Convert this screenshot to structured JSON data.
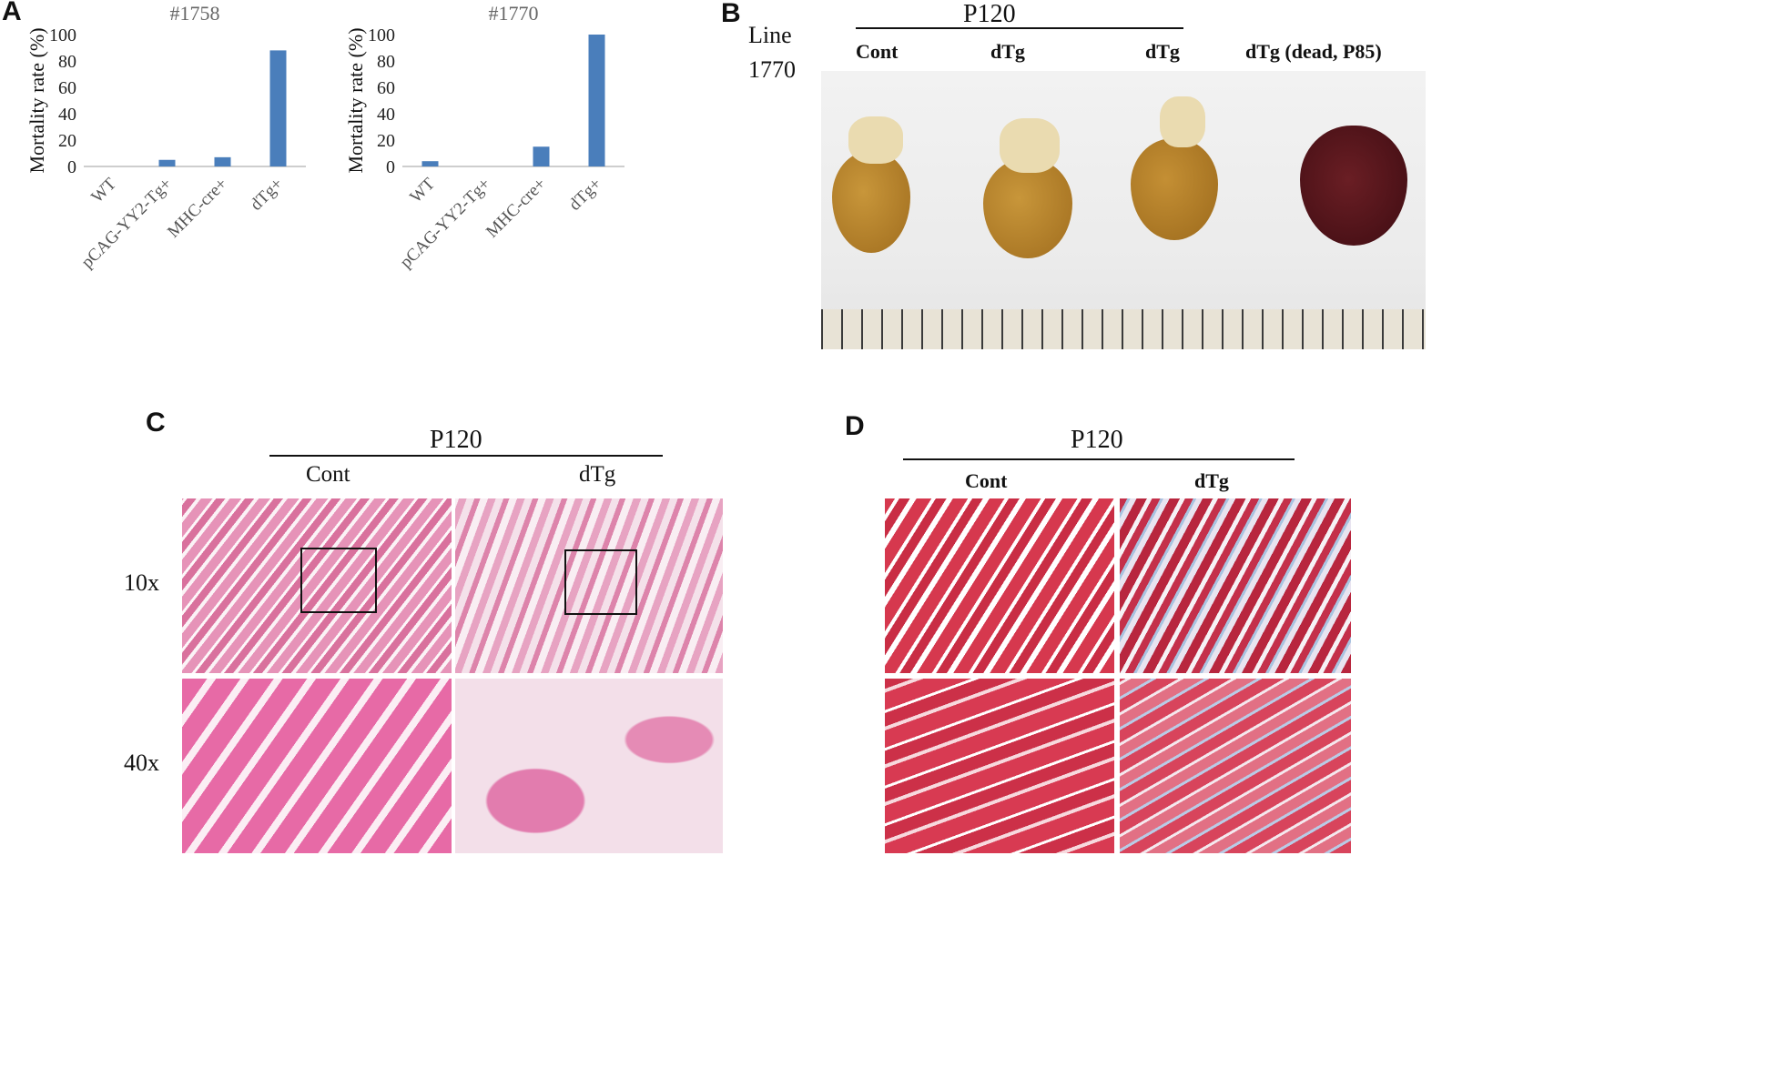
{
  "panels": {
    "A": "A",
    "B": "B",
    "C": "C",
    "D": "D"
  },
  "chart_data": [
    {
      "type": "bar",
      "title": "#1758",
      "ylabel": "Mortality rate (%)",
      "categories": [
        "WT",
        "pCAG-YY2-Tg+",
        "MHC-cre+",
        "dTg+"
      ],
      "values": [
        0,
        5,
        7,
        88
      ],
      "ylim": [
        0,
        100
      ],
      "yticks": [
        0,
        20,
        40,
        60,
        80,
        100
      ],
      "grid": false,
      "bar_color": "#4a7ebb"
    },
    {
      "type": "bar",
      "title": "#1770",
      "ylabel": "Mortality rate (%)",
      "categories": [
        "WT",
        "pCAG-YY2-Tg+",
        "MHC-cre+",
        "dTg+"
      ],
      "values": [
        4,
        0,
        15,
        100
      ],
      "ylim": [
        0,
        100
      ],
      "yticks": [
        0,
        20,
        40,
        60,
        80,
        100
      ],
      "grid": false,
      "bar_color": "#4a7ebb"
    }
  ],
  "panel_b": {
    "line_label_1": "Line",
    "line_label_2": "1770",
    "header": "P120",
    "columns": [
      "Cont",
      "dTg",
      "dTg",
      "dTg (dead, P85)"
    ]
  },
  "panel_c": {
    "header": "P120",
    "columns": [
      "Cont",
      "dTg"
    ],
    "rows": [
      "10x",
      "40x"
    ]
  },
  "panel_d": {
    "header": "P120",
    "columns": [
      "Cont",
      "dTg"
    ]
  }
}
